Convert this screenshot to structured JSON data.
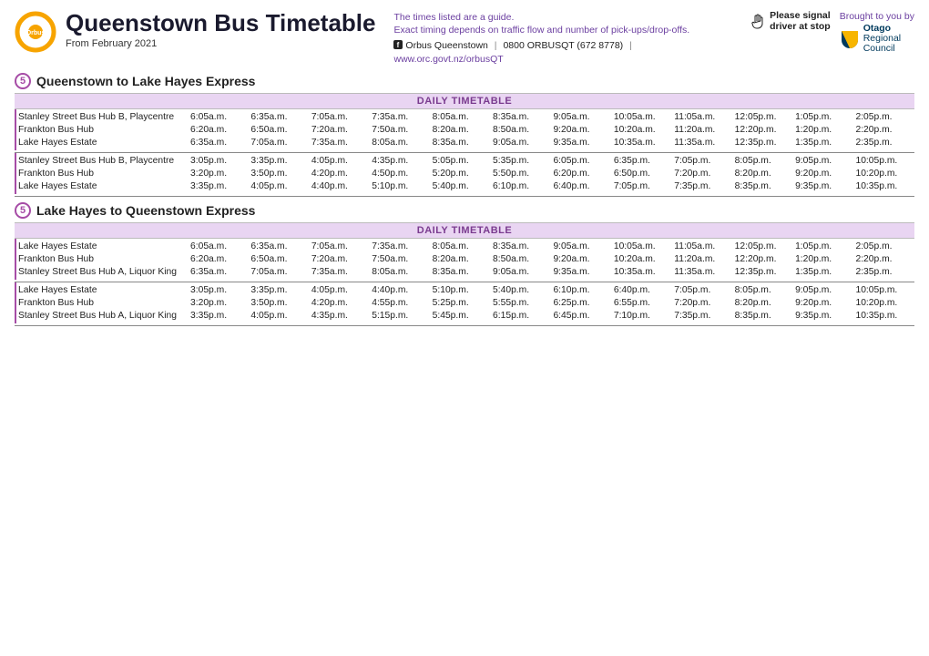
{
  "colors": {
    "accent_purple": "#6b3fa0",
    "route_purple": "#a64ca6",
    "band_bg": "#e9d5f2",
    "orbus_orange": "#f7a400",
    "orc_blue": "#003a5d",
    "orc_yellow": "#f7b500"
  },
  "header": {
    "logo_text": "Orbus",
    "title": "Queenstown Bus Timetable",
    "subtitle": "From February 2021",
    "guide_line1": "The times listed are a guide.",
    "guide_line2": "Exact timing depends on traffic flow and number of pick-ups/drop-offs.",
    "fb_label": "Orbus Queenstown",
    "phone": "0800 ORBUSQT (672 8778)",
    "url": "www.orc.govt.nz/orbusQT",
    "signal_l1": "Please signal",
    "signal_l2": "driver at stop",
    "brought": "Brought to you by",
    "orc_l1": "Otago",
    "orc_l2": "Regional",
    "orc_l3": "Council"
  },
  "routes": [
    {
      "number": "5",
      "title": "Queenstown to Lake Hayes Express",
      "daily_label": "DAILY TIMETABLE",
      "stops": [
        "Stanley Street Bus Hub B, Playcentre",
        "Frankton Bus Hub",
        "Lake Hayes Estate"
      ],
      "blocks": [
        [
          [
            "6:05a.m.",
            "6:35a.m.",
            "7:05a.m.",
            "7:35a.m.",
            "8:05a.m.",
            "8:35a.m.",
            "9:05a.m.",
            "10:05a.m.",
            "11:05a.m.",
            "12:05p.m.",
            "1:05p.m.",
            "2:05p.m."
          ],
          [
            "6:20a.m.",
            "6:50a.m.",
            "7:20a.m.",
            "7:50a.m.",
            "8:20a.m.",
            "8:50a.m.",
            "9:20a.m.",
            "10:20a.m.",
            "11:20a.m.",
            "12:20p.m.",
            "1:20p.m.",
            "2:20p.m."
          ],
          [
            "6:35a.m.",
            "7:05a.m.",
            "7:35a.m.",
            "8:05a.m.",
            "8:35a.m.",
            "9:05a.m.",
            "9:35a.m.",
            "10:35a.m.",
            "11:35a.m.",
            "12:35p.m.",
            "1:35p.m.",
            "2:35p.m."
          ]
        ],
        [
          [
            "3:05p.m.",
            "3:35p.m.",
            "4:05p.m.",
            "4:35p.m.",
            "5:05p.m.",
            "5:35p.m.",
            "6:05p.m.",
            "6:35p.m.",
            "7:05p.m.",
            "8:05p.m.",
            "9:05p.m.",
            "10:05p.m."
          ],
          [
            "3:20p.m.",
            "3:50p.m.",
            "4:20p.m.",
            "4:50p.m.",
            "5:20p.m.",
            "5:50p.m.",
            "6:20p.m.",
            "6:50p.m.",
            "7:20p.m.",
            "8:20p.m.",
            "9:20p.m.",
            "10:20p.m."
          ],
          [
            "3:35p.m.",
            "4:05p.m.",
            "4:40p.m.",
            "5:10p.m.",
            "5:40p.m.",
            "6:10p.m.",
            "6:40p.m.",
            "7:05p.m.",
            "7:35p.m.",
            "8:35p.m.",
            "9:35p.m.",
            "10:35p.m."
          ]
        ]
      ]
    },
    {
      "number": "5",
      "title": "Lake Hayes to Queenstown Express",
      "daily_label": "DAILY TIMETABLE",
      "stops": [
        "Lake Hayes Estate",
        "Frankton Bus Hub",
        "Stanley Street Bus Hub A, Liquor King"
      ],
      "blocks": [
        [
          [
            "6:05a.m.",
            "6:35a.m.",
            "7:05a.m.",
            "7:35a.m.",
            "8:05a.m.",
            "8:35a.m.",
            "9:05a.m.",
            "10:05a.m.",
            "11:05a.m.",
            "12:05p.m.",
            "1:05p.m.",
            "2:05p.m."
          ],
          [
            "6:20a.m.",
            "6:50a.m.",
            "7:20a.m.",
            "7:50a.m.",
            "8:20a.m.",
            "8:50a.m.",
            "9:20a.m.",
            "10:20a.m.",
            "11:20a.m.",
            "12:20p.m.",
            "1:20p.m.",
            "2:20p.m."
          ],
          [
            "6:35a.m.",
            "7:05a.m.",
            "7:35a.m.",
            "8:05a.m.",
            "8:35a.m.",
            "9:05a.m.",
            "9:35a.m.",
            "10:35a.m.",
            "11:35a.m.",
            "12:35p.m.",
            "1:35p.m.",
            "2:35p.m."
          ]
        ],
        [
          [
            "3:05p.m.",
            "3:35p.m.",
            "4:05p.m.",
            "4:40p.m.",
            "5:10p.m.",
            "5:40p.m.",
            "6:10p.m.",
            "6:40p.m.",
            "7:05p.m.",
            "8:05p.m.",
            "9:05p.m.",
            "10:05p.m."
          ],
          [
            "3:20p.m.",
            "3:50p.m.",
            "4:20p.m.",
            "4:55p.m.",
            "5:25p.m.",
            "5:55p.m.",
            "6:25p.m.",
            "6:55p.m.",
            "7:20p.m.",
            "8:20p.m.",
            "9:20p.m.",
            "10:20p.m."
          ],
          [
            "3:35p.m.",
            "4:05p.m.",
            "4:35p.m.",
            "5:15p.m.",
            "5:45p.m.",
            "6:15p.m.",
            "6:45p.m.",
            "7:10p.m.",
            "7:35p.m.",
            "8:35p.m.",
            "9:35p.m.",
            "10:35p.m."
          ]
        ]
      ]
    }
  ]
}
